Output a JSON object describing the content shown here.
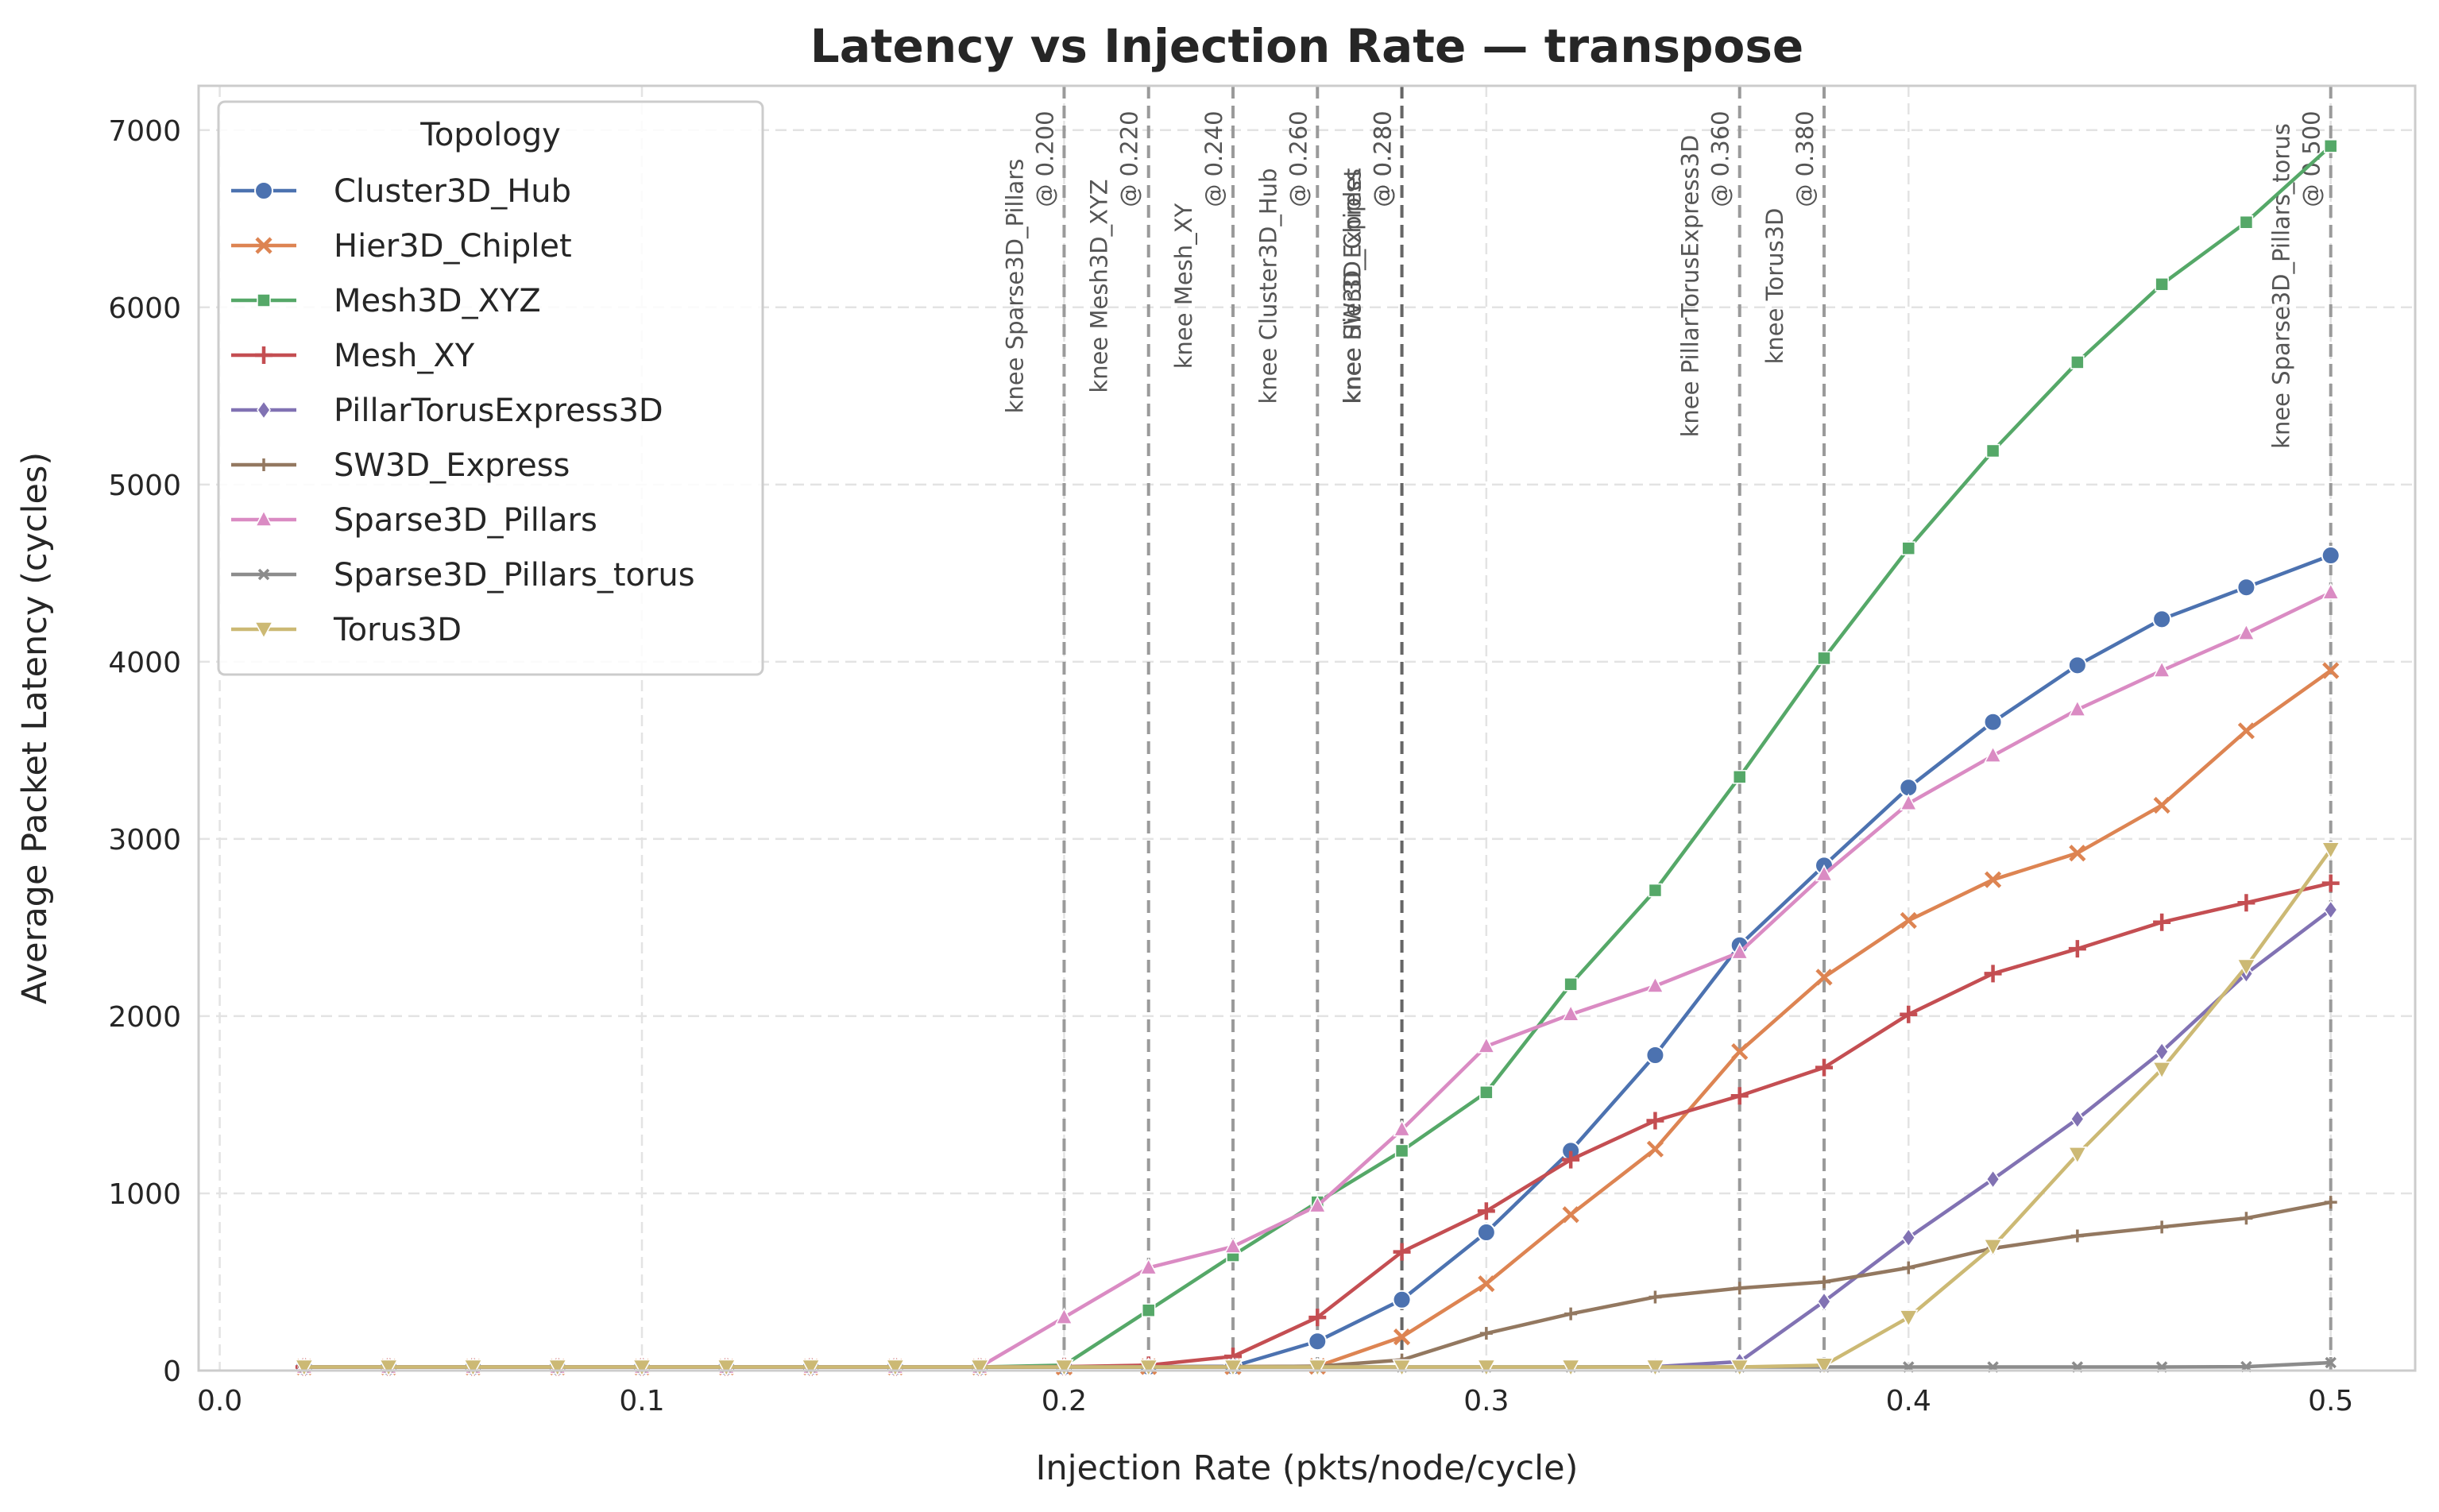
{
  "chart_data": {
    "type": "line",
    "title": "Latency vs Injection Rate — transpose",
    "xlabel": "Injection Rate (pkts/node/cycle)",
    "ylabel": "Average Packet Latency (cycles)",
    "xlim": [
      -0.005,
      0.52
    ],
    "ylim": [
      0,
      7250
    ],
    "xticks": [
      0.0,
      0.1,
      0.2,
      0.3,
      0.4,
      0.5
    ],
    "xtick_labels": [
      "0.0",
      "0.1",
      "0.2",
      "0.3",
      "0.4",
      "0.5"
    ],
    "yticks": [
      0,
      1000,
      2000,
      3000,
      4000,
      5000,
      6000,
      7000
    ],
    "ytick_labels": [
      "0",
      "1000",
      "2000",
      "3000",
      "4000",
      "5000",
      "6000",
      "7000"
    ],
    "grid": true,
    "legend_title": "Topology",
    "legend_position": "upper-left",
    "x": [
      0.02,
      0.04,
      0.06,
      0.08,
      0.1,
      0.12,
      0.14,
      0.16,
      0.18,
      0.2,
      0.22,
      0.24,
      0.26,
      0.28,
      0.3,
      0.32,
      0.34,
      0.36,
      0.38,
      0.4,
      0.42,
      0.44,
      0.46,
      0.48,
      0.5
    ],
    "series": [
      {
        "name": "Cluster3D_Hub",
        "color": "#4c72b0",
        "marker": "circle",
        "values": [
          20,
          20,
          20,
          20,
          20,
          20,
          20,
          20,
          20,
          22,
          22,
          24,
          165,
          400,
          780,
          1240,
          1780,
          2400,
          2850,
          3290,
          3660,
          3980,
          4240,
          4420,
          4600
        ]
      },
      {
        "name": "Hier3D_Chiplet",
        "color": "#dd8452",
        "marker": "x",
        "values": [
          20,
          20,
          20,
          20,
          20,
          20,
          20,
          20,
          20,
          20,
          22,
          22,
          24,
          190,
          490,
          880,
          1250,
          1800,
          2220,
          2540,
          2770,
          2920,
          3190,
          3610,
          3950
        ]
      },
      {
        "name": "Mesh3D_XYZ",
        "color": "#55a868",
        "marker": "square",
        "values": [
          20,
          20,
          20,
          20,
          20,
          20,
          20,
          20,
          20,
          30,
          340,
          650,
          950,
          1240,
          1570,
          2180,
          2710,
          3350,
          4020,
          4640,
          5190,
          5690,
          6130,
          6480,
          6910
        ]
      },
      {
        "name": "Mesh_XY",
        "color": "#c44e52",
        "marker": "plus",
        "values": [
          20,
          20,
          20,
          20,
          20,
          20,
          20,
          20,
          20,
          22,
          30,
          80,
          300,
          670,
          900,
          1190,
          1410,
          1550,
          1710,
          2010,
          2240,
          2380,
          2530,
          2640,
          2750
        ]
      },
      {
        "name": "PillarTorusExpress3D",
        "color": "#8172b3",
        "marker": "diamond",
        "values": [
          20,
          20,
          20,
          20,
          20,
          20,
          20,
          20,
          20,
          20,
          20,
          20,
          20,
          20,
          20,
          20,
          22,
          50,
          390,
          750,
          1080,
          1420,
          1800,
          2240,
          2600
        ]
      },
      {
        "name": "SW3D_Express",
        "color": "#937860",
        "marker": "thin-plus",
        "values": [
          20,
          20,
          20,
          20,
          20,
          20,
          20,
          20,
          20,
          20,
          20,
          22,
          24,
          60,
          210,
          320,
          415,
          465,
          500,
          580,
          690,
          760,
          810,
          860,
          950
        ]
      },
      {
        "name": "Sparse3D_Pillars",
        "color": "#da8bc3",
        "marker": "triangle-up",
        "values": [
          20,
          20,
          20,
          20,
          20,
          20,
          20,
          20,
          20,
          300,
          580,
          700,
          930,
          1360,
          1830,
          2010,
          2170,
          2360,
          2800,
          3200,
          3470,
          3730,
          3950,
          4160,
          4390
        ]
      },
      {
        "name": "Sparse3D_Pillars_torus",
        "color": "#8c8c8c",
        "marker": "small-x",
        "values": [
          20,
          20,
          20,
          20,
          20,
          20,
          20,
          20,
          20,
          20,
          20,
          20,
          20,
          20,
          20,
          20,
          20,
          20,
          20,
          20,
          20,
          20,
          20,
          22,
          45
        ]
      },
      {
        "name": "Torus3D",
        "color": "#ccb974",
        "marker": "triangle-down",
        "values": [
          20,
          20,
          20,
          20,
          20,
          20,
          20,
          20,
          20,
          20,
          20,
          20,
          20,
          20,
          20,
          20,
          20,
          20,
          30,
          300,
          700,
          1220,
          1700,
          2280,
          2940
        ]
      }
    ],
    "knees": [
      {
        "x": 0.2,
        "label": "knee Sparse3D_Pillars",
        "at": "@ 0.200"
      },
      {
        "x": 0.22,
        "label": "knee Mesh3D_XYZ",
        "at": "@ 0.220"
      },
      {
        "x": 0.24,
        "label": "knee Mesh_XY",
        "at": "@ 0.240"
      },
      {
        "x": 0.26,
        "label": "knee Cluster3D_Hub",
        "at": "@ 0.260"
      },
      {
        "x": 0.28,
        "label": "knee SW3D_Express",
        "at": "@ 0.280"
      },
      {
        "x": 0.28,
        "label": "knee Hier3D_Chiplet",
        "at": "@ 0.280"
      },
      {
        "x": 0.36,
        "label": "knee PillarTorusExpress3D",
        "at": "@ 0.360"
      },
      {
        "x": 0.38,
        "label": "knee Torus3D",
        "at": "@ 0.380"
      },
      {
        "x": 0.5,
        "label": "knee Sparse3D_Pillars_torus",
        "at": "@ 0.500"
      }
    ]
  }
}
